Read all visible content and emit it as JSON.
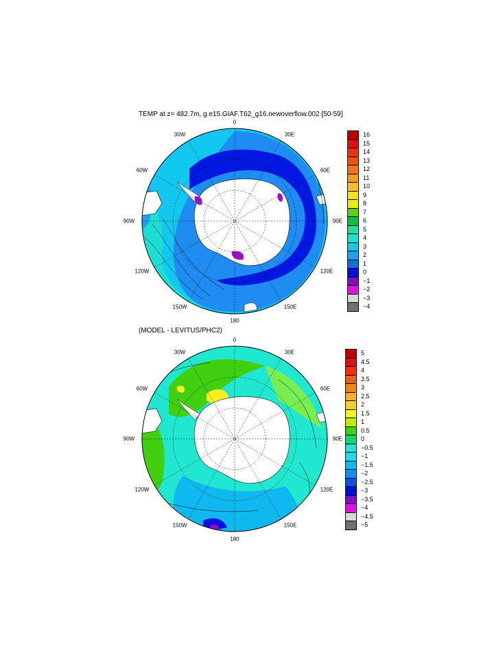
{
  "panels": [
    {
      "title": "TEMP at z= 482.7m, g.e15.GIAF.T62_g16.newoverflow.002 [50-59]",
      "lon_labels": {
        "n": "0",
        "ne": "30E",
        "ne2": "60E",
        "e": "90E",
        "se2": "120E",
        "se": "150E",
        "s": "180",
        "sw": "150W",
        "sw2": "120W",
        "w": "90W",
        "nw2": "60W",
        "nw": "30W"
      },
      "colorbar": {
        "labels": [
          "16",
          "15",
          "14",
          "13",
          "12",
          "11",
          "10",
          "9",
          "8",
          "7",
          "6",
          "5",
          "4",
          "3",
          "2",
          "1",
          "0",
          "−1",
          "−2",
          "−3",
          "−4"
        ],
        "colors": [
          "#c00000",
          "#e01010",
          "#f03010",
          "#f05010",
          "#f07818",
          "#f49a20",
          "#f8c020",
          "#f8e020",
          "#e0f000",
          "#60d010",
          "#10c040",
          "#20e0a0",
          "#20e0d0",
          "#10c8f0",
          "#20a0f0",
          "#1070e0",
          "#0010e0",
          "#8010c0",
          "#e010e0",
          "#d8d8d8",
          "#707070"
        ]
      }
    },
    {
      "title": "(MODEL - LEVITUS/PHC2)",
      "lon_labels": {
        "n": "0",
        "ne": "30E",
        "ne2": "60E",
        "e": "90E",
        "se2": "120E",
        "se": "150E",
        "s": "180",
        "sw": "150W",
        "sw2": "120W",
        "w": "90W",
        "nw2": "60W",
        "nw": "30W"
      },
      "colorbar": {
        "labels": [
          "5",
          "4.5",
          "4",
          "3.5",
          "3",
          "2.5",
          "2",
          "1.5",
          "1",
          "0.5",
          "0",
          "−0.5",
          "−1",
          "−1.5",
          "−2",
          "−2.5",
          "−3",
          "−3.5",
          "−4",
          "−4.5",
          "−5"
        ],
        "colors": [
          "#c00000",
          "#e01010",
          "#f03010",
          "#f06010",
          "#f08818",
          "#f4b030",
          "#f8d020",
          "#f8f020",
          "#b8f000",
          "#40d010",
          "#10d870",
          "#20e8d0",
          "#20d8f0",
          "#10b8f0",
          "#1090f0",
          "#1050e0",
          "#0010e0",
          "#8010c0",
          "#e010e0",
          "#d8d8d8",
          "#707070"
        ]
      }
    }
  ],
  "colors": {
    "land": "#ffffff",
    "top_ocean_main": "#1e8cf0",
    "top_ocean_outer": "#10c8f0",
    "top_ocean_shelf": "#0018e0",
    "top_ocean_cold": "#a010c8",
    "bottom_ocean_main": "#20e8d0",
    "bottom_ocean_green": "#40d010",
    "bottom_ocean_yellow": "#f8f020",
    "bottom_ocean_blue": "#10b8f0"
  }
}
